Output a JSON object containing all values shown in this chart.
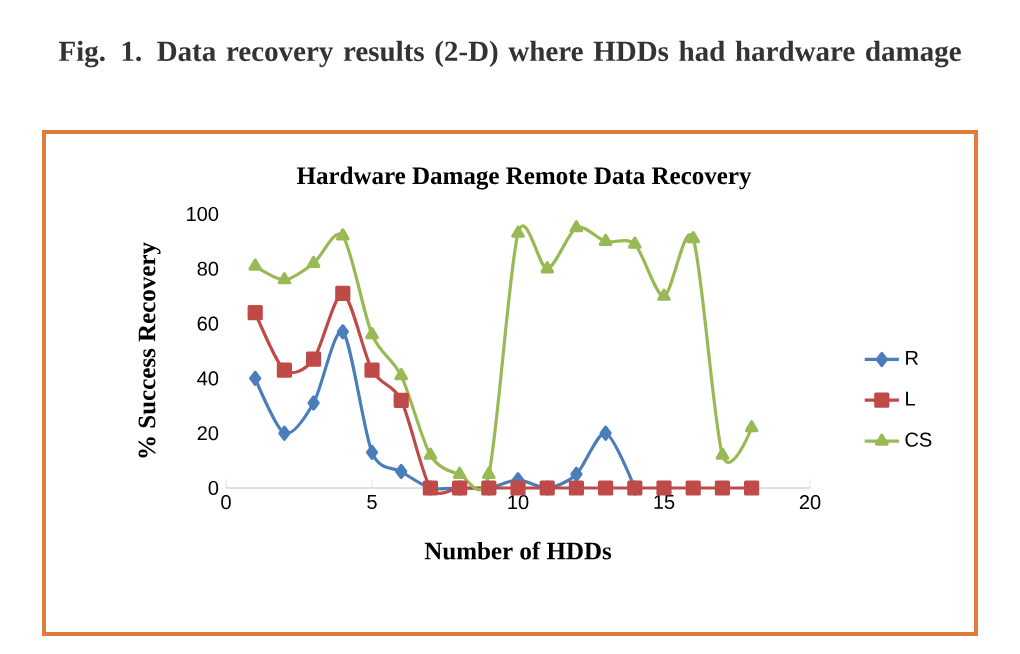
{
  "chart_data": {
    "type": "line",
    "title": "Fig. 1. Data recovery results (2-D) where HDDs had hardware damage",
    "subtitle": "Hardware Damage Remote Data Recovery",
    "xlabel": "Number of HDDs",
    "ylabel": "% Success Recovery",
    "x": [
      1,
      2,
      3,
      4,
      5,
      6,
      7,
      8,
      9,
      10,
      11,
      12,
      13,
      14,
      15,
      16,
      17,
      18
    ],
    "series": [
      {
        "name": "R",
        "color": "#4a7ebb",
        "marker": "diamond",
        "values": [
          40,
          20,
          31,
          57,
          13,
          6,
          0,
          0,
          0,
          3,
          0,
          5,
          20,
          0,
          null,
          null,
          null,
          null
        ]
      },
      {
        "name": "L",
        "color": "#be4b48",
        "marker": "square",
        "values": [
          64,
          43,
          47,
          71,
          43,
          32,
          0,
          0,
          0,
          0,
          0,
          0,
          0,
          0,
          0,
          0,
          0,
          0
        ]
      },
      {
        "name": "CS",
        "color": "#98b954",
        "marker": "triangle",
        "values": [
          81,
          76,
          82,
          92,
          56,
          41,
          12,
          5,
          5,
          93,
          80,
          95,
          90,
          89,
          70,
          91,
          12,
          22
        ]
      }
    ],
    "xlim": [
      0,
      20
    ],
    "xticks": [
      0,
      5,
      10,
      15,
      20
    ],
    "ylim": [
      0,
      100
    ],
    "yticks": [
      0,
      20,
      40,
      60,
      80,
      100
    ],
    "grid": false,
    "legend": "right",
    "line_style": "solid"
  }
}
